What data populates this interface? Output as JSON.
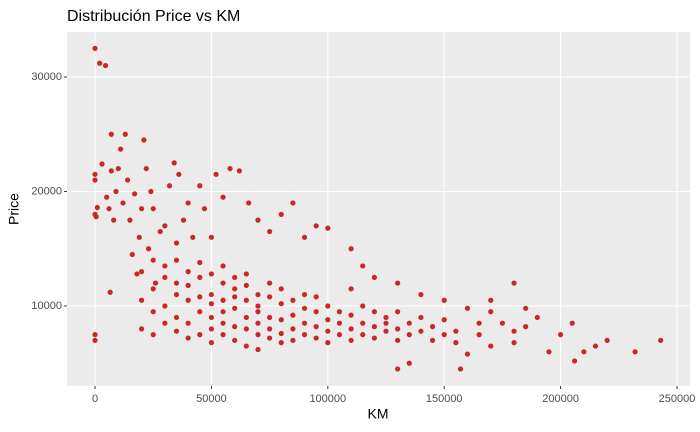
{
  "chart_data": {
    "type": "scatter",
    "title": "Distribución Price vs KM",
    "x_label": "KM",
    "y_label": "Price",
    "color": "#cd2626",
    "grid": true,
    "xlim": [
      -12040,
      255590
    ],
    "ylim": [
      3013,
      33930
    ],
    "xticks": [
      0,
      50000,
      100000,
      150000,
      200000,
      250000
    ],
    "yticks": [
      10000,
      20000,
      30000
    ],
    "x": [
      0,
      2000,
      4500,
      0,
      0,
      0,
      500,
      1000,
      0,
      0,
      3000,
      5000,
      6000,
      7000,
      8000,
      6500,
      7000,
      9000,
      10000,
      11000,
      12000,
      13000,
      14000,
      15000,
      16000,
      17000,
      18000,
      19000,
      20000,
      21000,
      22000,
      23000,
      24000,
      25000,
      26000,
      28000,
      30000,
      32000,
      34000,
      35000,
      36000,
      38000,
      40000,
      42000,
      45000,
      47000,
      50000,
      52000,
      55000,
      58000,
      62000,
      66000,
      70000,
      75000,
      80000,
      85000,
      90000,
      95000,
      100000,
      110000,
      115000,
      120000,
      130000,
      140000,
      150000,
      160000,
      160000,
      170000,
      175000,
      180000,
      190000,
      195000,
      200000,
      205000,
      210000,
      215000,
      220000,
      232000,
      243000,
      157000,
      135000,
      130000,
      206000,
      20000,
      20000,
      20000,
      25000,
      25000,
      25000,
      25000,
      30000,
      30000,
      30000,
      30000,
      35000,
      35000,
      35000,
      35000,
      35000,
      40000,
      40000,
      40000,
      40000,
      40000,
      45000,
      45000,
      45000,
      45000,
      45000,
      50000,
      50000,
      50000,
      50000,
      50000,
      50000,
      55000,
      55000,
      55000,
      55000,
      55000,
      55000,
      60000,
      60000,
      60000,
      60000,
      60000,
      60000,
      65000,
      65000,
      65000,
      65000,
      65000,
      65000,
      70000,
      70000,
      70000,
      70000,
      70000,
      70000,
      75000,
      75000,
      75000,
      75000,
      75000,
      80000,
      80000,
      80000,
      80000,
      80000,
      85000,
      85000,
      85000,
      85000,
      90000,
      90000,
      90000,
      90000,
      95000,
      95000,
      95000,
      95000,
      100000,
      100000,
      100000,
      100000,
      105000,
      105000,
      105000,
      110000,
      110000,
      110000,
      110000,
      115000,
      115000,
      115000,
      120000,
      120000,
      120000,
      125000,
      125000,
      125000,
      130000,
      130000,
      130000,
      135000,
      135000,
      140000,
      140000,
      145000,
      145000,
      150000,
      150000,
      155000,
      155000,
      165000,
      165000,
      170000,
      170000,
      180000,
      180000,
      185000,
      185000
    ],
    "values": [
      32500,
      31200,
      31000,
      21500,
      21000,
      18000,
      17800,
      18600,
      7500,
      7000,
      22400,
      19500,
      18500,
      21800,
      17500,
      11200,
      25000,
      20000,
      22000,
      23700,
      19000,
      25000,
      21000,
      17500,
      14500,
      19800,
      12800,
      16000,
      18500,
      24500,
      22000,
      15000,
      20000,
      18500,
      12000,
      16500,
      17000,
      20500,
      22500,
      15500,
      21500,
      17500,
      19000,
      16000,
      20500,
      18500,
      16000,
      21500,
      19500,
      22000,
      21800,
      19000,
      17500,
      16500,
      18000,
      19000,
      16000,
      17000,
      16800,
      15000,
      13500,
      12500,
      12000,
      11000,
      10500,
      9800,
      5800,
      10500,
      8500,
      12000,
      9000,
      6000,
      7500,
      8500,
      6000,
      6500,
      7000,
      6000,
      7000,
      4500,
      5000,
      4500,
      5200,
      10500,
      13000,
      8000,
      11500,
      9500,
      14000,
      7500,
      12500,
      10000,
      8500,
      13500,
      11000,
      9000,
      14000,
      7800,
      12000,
      10500,
      13000,
      8500,
      11800,
      7200,
      9500,
      12500,
      10800,
      7500,
      13800,
      11000,
      9000,
      12800,
      8000,
      10200,
      6800,
      10500,
      8500,
      12000,
      9500,
      7500,
      13500,
      9800,
      11500,
      8200,
      10800,
      7000,
      12500,
      9000,
      10500,
      8000,
      11800,
      6500,
      12800,
      9500,
      8500,
      11000,
      7500,
      10000,
      6200,
      9000,
      10800,
      8000,
      12000,
      7200,
      8800,
      10200,
      7600,
      11500,
      6800,
      9200,
      8000,
      10500,
      7000,
      8500,
      9800,
      7500,
      11000,
      8200,
      9500,
      7200,
      10800,
      8800,
      7800,
      10000,
      6800,
      8500,
      9500,
      7500,
      8000,
      9200,
      7000,
      11500,
      8500,
      7500,
      10000,
      8200,
      9500,
      7200,
      7800,
      9000,
      8500,
      8000,
      9500,
      7000,
      8500,
      7500,
      7800,
      9000,
      8200,
      7000,
      7500,
      8800,
      7800,
      6800,
      7500,
      8500,
      6500,
      9500,
      7800,
      6800,
      9800,
      8200
    ]
  }
}
